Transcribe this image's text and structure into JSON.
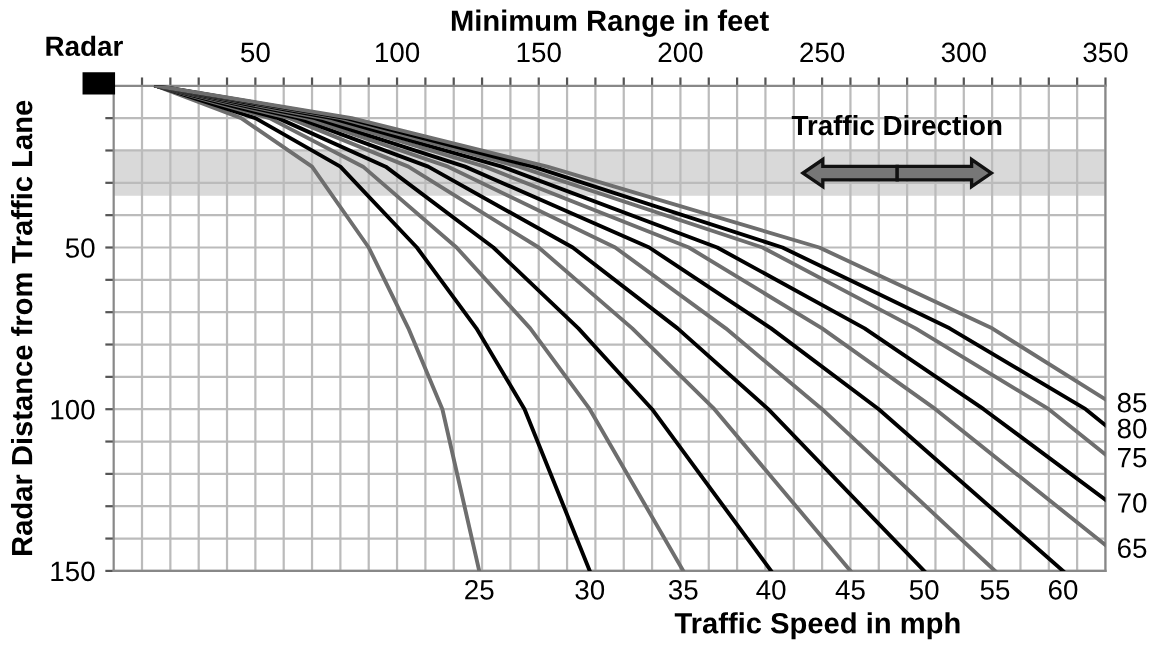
{
  "chart_data": {
    "type": "line",
    "xlabel": "Minimum Range in feet",
    "ylabel": "Radar Distance from Traffic Lane",
    "xlim": [
      0,
      350
    ],
    "ylim": [
      150,
      0
    ],
    "xticks": [
      {
        "value": 10,
        "label": null
      },
      {
        "value": 20,
        "label": null
      },
      {
        "value": 30,
        "label": null
      },
      {
        "value": 40,
        "label": null
      },
      50,
      {
        "value": 60,
        "label": null
      },
      {
        "value": 70,
        "label": null
      },
      {
        "value": 80,
        "label": null
      },
      {
        "value": 90,
        "label": null
      },
      100,
      {
        "value": 110,
        "label": null
      },
      {
        "value": 120,
        "label": null
      },
      {
        "value": 130,
        "label": null
      },
      {
        "value": 140,
        "label": null
      },
      150,
      {
        "value": 160,
        "label": null
      },
      {
        "value": 170,
        "label": null
      },
      {
        "value": 180,
        "label": null
      },
      {
        "value": 190,
        "label": null
      },
      200,
      {
        "value": 210,
        "label": null
      },
      {
        "value": 220,
        "label": null
      },
      {
        "value": 230,
        "label": null
      },
      {
        "value": 240,
        "label": null
      },
      250,
      {
        "value": 260,
        "label": null
      },
      {
        "value": 270,
        "label": null
      },
      {
        "value": 280,
        "label": null
      },
      {
        "value": 290,
        "label": null
      },
      300,
      {
        "value": 310,
        "label": null
      },
      {
        "value": 320,
        "label": null
      },
      {
        "value": 330,
        "label": null
      },
      {
        "value": 340,
        "label": null
      },
      350
    ],
    "yticks": [
      {
        "value": 10,
        "label": null
      },
      {
        "value": 20,
        "label": null
      },
      {
        "value": 30,
        "label": null
      },
      {
        "value": 40,
        "label": null
      },
      50,
      {
        "value": 60,
        "label": null
      },
      {
        "value": 70,
        "label": null
      },
      {
        "value": 80,
        "label": null
      },
      {
        "value": 90,
        "label": null
      },
      100,
      {
        "value": 110,
        "label": null
      },
      {
        "value": 120,
        "label": null
      },
      {
        "value": 130,
        "label": null
      },
      {
        "value": 140,
        "label": null
      },
      150
    ],
    "grid": true,
    "marker": "none",
    "line_style": "solid",
    "legend": false,
    "bands": [
      {
        "axis": "y",
        "from": 20,
        "to": 34,
        "label": "Traffic Direction",
        "color": "#d9d9d9"
      }
    ],
    "annotations": [
      "Radar",
      "Traffic Speed in mph"
    ],
    "series": [
      {
        "name": "25",
        "color": "#6e6e6e",
        "x": [
          15,
          45,
          70,
          90,
          104,
          116,
          129
        ],
        "values": [
          0,
          10,
          25,
          50,
          75,
          100,
          150
        ]
      },
      {
        "name": "30",
        "color": "#000000",
        "x": [
          15,
          50,
          80,
          107,
          128,
          145,
          168
        ],
        "values": [
          0,
          10,
          25,
          50,
          75,
          100,
          150
        ]
      },
      {
        "name": "35",
        "color": "#6e6e6e",
        "x": [
          15,
          55,
          88,
          121,
          147,
          168,
          201
        ],
        "values": [
          0,
          10,
          25,
          50,
          75,
          100,
          150
        ]
      },
      {
        "name": "40",
        "color": "#000000",
        "x": [
          15,
          58,
          96,
          134,
          164,
          190,
          232
        ],
        "values": [
          0,
          10,
          25,
          50,
          75,
          100,
          150
        ]
      },
      {
        "name": "45",
        "color": "#6e6e6e",
        "x": [
          15,
          62,
          104,
          150,
          183,
          212,
          260
        ],
        "values": [
          0,
          10,
          25,
          50,
          75,
          100,
          150
        ]
      },
      {
        "name": "50",
        "color": "#000000",
        "x": [
          15,
          65,
          111,
          162,
          199,
          231,
          286
        ],
        "values": [
          0,
          10,
          25,
          50,
          75,
          100,
          150
        ]
      },
      {
        "name": "55",
        "color": "#6e6e6e",
        "x": [
          15,
          68,
          118,
          177,
          216,
          250,
          311
        ],
        "values": [
          0,
          10,
          25,
          50,
          75,
          100,
          150
        ]
      },
      {
        "name": "60",
        "color": "#000000",
        "x": [
          15,
          71,
          124,
          189,
          232,
          270,
          335
        ],
        "values": [
          0,
          10,
          25,
          50,
          75,
          100,
          150
        ]
      },
      {
        "name": "65",
        "color": "#6e6e6e",
        "x": [
          15,
          74,
          131,
          203,
          250,
          290,
          350
        ],
        "values": [
          0,
          10,
          25,
          50,
          75,
          100,
          142
        ]
      },
      {
        "name": "70",
        "color": "#000000",
        "x": [
          15,
          77,
          137,
          213,
          265,
          307,
          350
        ],
        "values": [
          0,
          10,
          25,
          50,
          75,
          100,
          128
        ]
      },
      {
        "name": "75",
        "color": "#6e6e6e",
        "x": [
          15,
          80,
          143,
          229,
          283,
          330,
          350
        ],
        "values": [
          0,
          10,
          25,
          50,
          75,
          100,
          114
        ]
      },
      {
        "name": "80",
        "color": "#000000",
        "x": [
          15,
          82,
          148,
          236,
          295,
          343,
          350
        ],
        "values": [
          0,
          10,
          25,
          50,
          75,
          100,
          105
        ]
      },
      {
        "name": "85",
        "color": "#6e6e6e",
        "x": [
          15,
          84,
          153,
          249,
          310,
          350
        ],
        "values": [
          0,
          10,
          25,
          50,
          75,
          97
        ]
      }
    ]
  }
}
